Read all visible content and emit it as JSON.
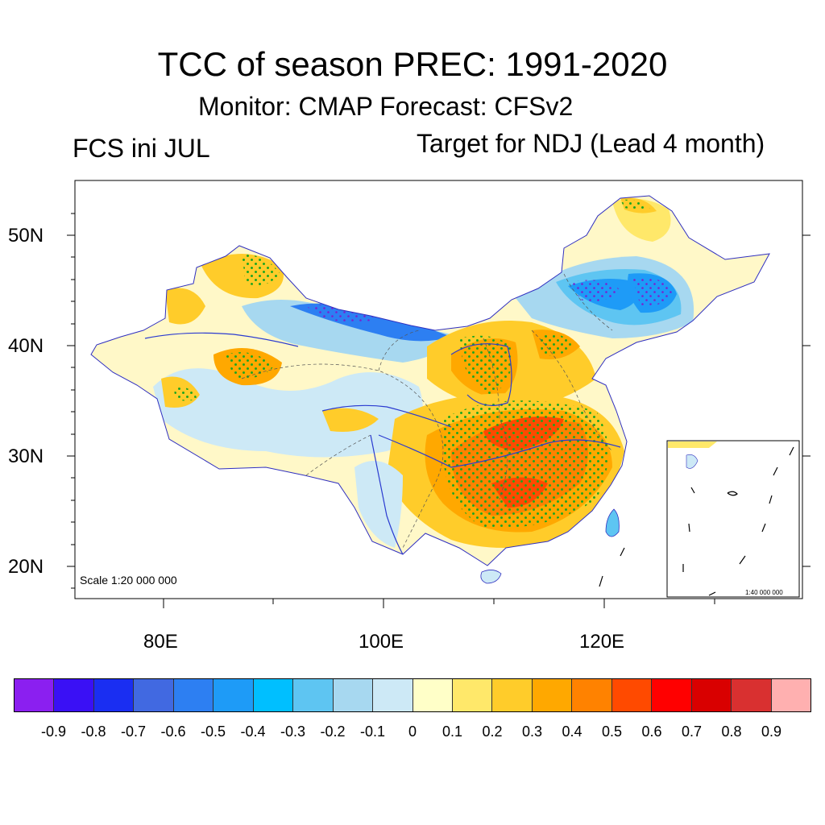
{
  "header": {
    "title": "TCC of season PREC: 1991-2020",
    "subtitle": "Monitor: CMAP   Forecast: CFSv2",
    "left_label": "FCS ini JUL",
    "right_label": "Target for NDJ (Lead 4 month)"
  },
  "axes": {
    "lat_labels": [
      "50N",
      "40N",
      "30N",
      "20N"
    ],
    "lon_labels": [
      "80E",
      "100E",
      "120E"
    ]
  },
  "map": {
    "scale_main": "Scale 1:20 000 000",
    "scale_inset": "1:40 000 000"
  },
  "colorbar": {
    "labels": [
      "-0.9",
      "-0.8",
      "-0.7",
      "-0.6",
      "-0.5",
      "-0.4",
      "-0.3",
      "-0.2",
      "-0.1",
      "0",
      "0.1",
      "0.2",
      "0.3",
      "0.4",
      "0.5",
      "0.6",
      "0.7",
      "0.8",
      "0.9"
    ],
    "colors": [
      "#8b1ff0",
      "#3a10f5",
      "#1a2ef2",
      "#4169e1",
      "#2d7ff2",
      "#1e9bf7",
      "#00bfff",
      "#5ec5f2",
      "#a7d8f0",
      "#cde9f6",
      "#ffffc8",
      "#ffe86a",
      "#ffcc2a",
      "#ffa800",
      "#ff8200",
      "#ff4a00",
      "#ff0000",
      "#d90000",
      "#d93030",
      "#ffb0b0"
    ]
  }
}
